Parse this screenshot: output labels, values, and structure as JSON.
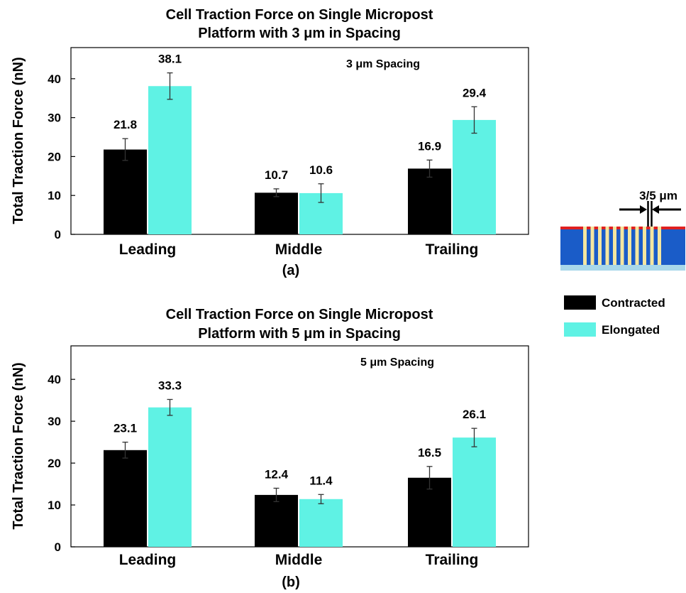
{
  "legend": {
    "items": [
      {
        "label": "Contracted",
        "color": "#000000"
      },
      {
        "label": "Elongated",
        "color": "#5ff2e4"
      }
    ]
  },
  "schematic": {
    "label": "3/5 μm",
    "colors": {
      "substrate": "#1a5cc8",
      "base": "#a8d8ea",
      "top": "#e02020",
      "posts": "#f4e6a0"
    }
  },
  "chart_data": [
    {
      "type": "bar",
      "title": "Cell Traction Force on Single Micropost\nPlatform with 3 μm in Spacing",
      "annotation": "3 μm Spacing",
      "panel_label": "(a)",
      "ylabel": "Total Traction Force (nN)",
      "xlabel": "",
      "ylim": [
        0,
        48
      ],
      "yticks": [
        0,
        10,
        20,
        30,
        40
      ],
      "categories": [
        "Leading",
        "Middle",
        "Trailing"
      ],
      "series": [
        {
          "name": "Contracted",
          "color": "#000000",
          "values": [
            21.8,
            10.7,
            16.9
          ],
          "errors": [
            2.8,
            1.0,
            2.2
          ],
          "value_labels": [
            "21.8",
            "10.7",
            "16.9"
          ]
        },
        {
          "name": "Elongated",
          "color": "#5ff2e4",
          "values": [
            38.1,
            10.6,
            29.4
          ],
          "errors": [
            3.4,
            2.4,
            3.4
          ],
          "value_labels": [
            "38.1",
            "10.6",
            "29.4"
          ]
        }
      ],
      "grid": false
    },
    {
      "type": "bar",
      "title": "Cell Traction Force on Single Micropost\nPlatform with 5 μm in Spacing",
      "annotation": "5 μm Spacing",
      "panel_label": "(b)",
      "ylabel": "Total Traction Force (nN)",
      "xlabel": "",
      "ylim": [
        0,
        48
      ],
      "yticks": [
        0,
        10,
        20,
        30,
        40
      ],
      "categories": [
        "Leading",
        "Middle",
        "Trailing"
      ],
      "series": [
        {
          "name": "Contracted",
          "color": "#000000",
          "values": [
            23.1,
            12.4,
            16.5
          ],
          "errors": [
            1.9,
            1.6,
            2.7
          ],
          "value_labels": [
            "23.1",
            "12.4",
            "16.5"
          ]
        },
        {
          "name": "Elongated",
          "color": "#5ff2e4",
          "values": [
            33.3,
            11.4,
            26.1
          ],
          "errors": [
            1.9,
            1.1,
            2.2
          ],
          "value_labels": [
            "33.3",
            "11.4",
            "26.1"
          ]
        }
      ],
      "grid": false
    }
  ]
}
